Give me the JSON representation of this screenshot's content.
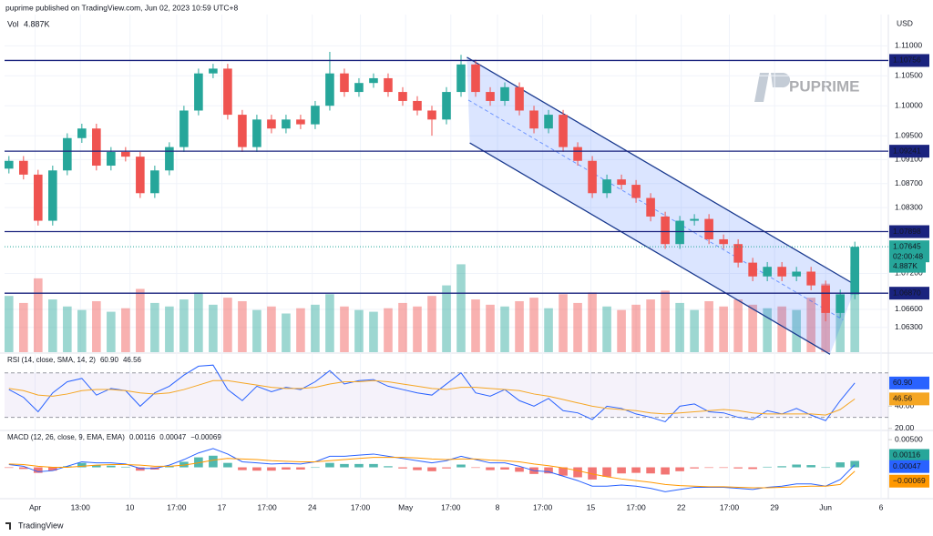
{
  "chart_data": {
    "type": "candlestick",
    "header": "puprime published on TradingView.com, Jun 02, 2023 10:59 UTC+8",
    "footer": "TradingView",
    "logo": "PUPRIME",
    "currency": "USD",
    "volume_label": "Vol",
    "volume_value": "4.887K",
    "up_color": "#26a69a",
    "down_color": "#ef5350",
    "xlim": [
      -0.3,
      60.3
    ],
    "xticks": [
      {
        "value": 1.8,
        "label": "Apr"
      },
      {
        "value": 4.9,
        "label": "13:00"
      },
      {
        "value": 8.3,
        "label": "10"
      },
      {
        "value": 11.5,
        "label": "17:00"
      },
      {
        "value": 14.6,
        "label": "17"
      },
      {
        "value": 17.7,
        "label": "17:00"
      },
      {
        "value": 20.8,
        "label": "24"
      },
      {
        "value": 24.1,
        "label": "17:00"
      },
      {
        "value": 27.2,
        "label": "May"
      },
      {
        "value": 30.3,
        "label": "17:00"
      },
      {
        "value": 33.5,
        "label": "8"
      },
      {
        "value": 36.6,
        "label": "17:00"
      },
      {
        "value": 39.9,
        "label": "15"
      },
      {
        "value": 43.0,
        "label": "17:00"
      },
      {
        "value": 46.1,
        "label": "22"
      },
      {
        "value": 49.4,
        "label": "17:00"
      },
      {
        "value": 52.5,
        "label": "29"
      },
      {
        "value": 56.0,
        "label": "Jun"
      },
      {
        "value": 59.8,
        "label": "6"
      }
    ],
    "ylim": [
      1.05885,
      1.11462
    ],
    "yticks": [
      {
        "value": 1.11,
        "label": "1.11000"
      },
      {
        "value": 1.105,
        "label": "1.10500"
      },
      {
        "value": 1.1,
        "label": "1.10000"
      },
      {
        "value": 1.095,
        "label": "1.09500"
      },
      {
        "value": 1.091,
        "label": "1.09100"
      },
      {
        "value": 1.087,
        "label": "1.08700"
      },
      {
        "value": 1.083,
        "label": "1.08300"
      },
      {
        "value": 1.072,
        "label": "1.07200"
      },
      {
        "value": 1.066,
        "label": "1.06600"
      },
      {
        "value": 1.063,
        "label": "1.06300"
      }
    ],
    "levels": [
      1.10756,
      1.09241,
      1.07898,
      {
        "value": 1.0687,
        "label": "1.06870"
      }
    ],
    "level_color": "#1a237e",
    "current": {
      "value": 1.07645,
      "countdown": "02:00:48"
    },
    "open": [
      1.0895,
      1.0908,
      1.0885,
      1.0808,
      1.0892,
      1.0946,
      1.0962,
      1.09,
      1.0923,
      1.0915,
      1.0854,
      1.0892,
      1.0931,
      1.0992,
      1.1054,
      1.1062,
      1.0985,
      1.0931,
      1.0977,
      1.0962,
      1.0977,
      1.0969,
      1.1,
      1.1054,
      1.1023,
      1.1038,
      1.1046,
      1.1023,
      1.1008,
      1.0992,
      1.0977,
      1.1023,
      1.1069,
      1.1023,
      1.1008,
      1.1031,
      1.0992,
      1.0962,
      1.0985,
      1.0931,
      1.0908,
      1.0854,
      1.0877,
      1.0868,
      1.0846,
      1.0815,
      1.0769,
      1.0808,
      1.0811,
      1.0777,
      1.0769,
      1.0738,
      1.0715,
      1.0731,
      1.0715,
      1.0723,
      1.07,
      1.0654,
      1.0685
    ],
    "high": [
      1.0916,
      1.0916,
      1.0893,
      1.09,
      1.0954,
      1.097,
      1.097,
      1.0931,
      1.0931,
      1.0923,
      1.09,
      1.0939,
      1.1,
      1.1062,
      1.107,
      1.107,
      1.0993,
      1.0985,
      1.0985,
      1.0985,
      1.0985,
      1.1008,
      1.109,
      1.1062,
      1.1046,
      1.1054,
      1.1054,
      1.1031,
      1.1016,
      1.1,
      1.1031,
      1.1085,
      1.1077,
      1.1031,
      1.1039,
      1.1039,
      1.1,
      1.0993,
      1.0993,
      1.0939,
      1.0916,
      1.0885,
      1.0885,
      1.0876,
      1.0854,
      1.0823,
      1.0816,
      1.0819,
      1.0819,
      1.0785,
      1.0777,
      1.0746,
      1.0739,
      1.0739,
      1.0731,
      1.0731,
      1.0708,
      1.0693,
      1.0773
    ],
    "low": [
      1.0887,
      1.0877,
      1.08,
      1.08,
      1.0884,
      1.0938,
      1.0892,
      1.0892,
      1.0907,
      1.0846,
      1.0846,
      1.0884,
      1.0923,
      1.0984,
      1.1046,
      1.0977,
      1.0923,
      1.0923,
      1.0954,
      1.0954,
      1.0961,
      1.0961,
      1.0992,
      1.1015,
      1.1015,
      1.103,
      1.1015,
      1.1,
      1.0984,
      1.095,
      1.0969,
      1.1015,
      1.1015,
      1.1,
      1.1,
      1.0984,
      1.0954,
      1.0954,
      1.0923,
      1.09,
      1.0846,
      1.0846,
      1.086,
      1.0838,
      1.0807,
      1.0761,
      1.0761,
      1.08,
      1.0769,
      1.0761,
      1.073,
      1.0707,
      1.0707,
      1.0707,
      1.0707,
      1.0692,
      1.064,
      1.0646,
      1.0677
    ],
    "close": [
      1.0908,
      1.0885,
      1.0808,
      1.0892,
      1.0946,
      1.0962,
      1.09,
      1.0923,
      1.0915,
      1.0854,
      1.0892,
      1.0931,
      1.0992,
      1.1054,
      1.1062,
      1.0985,
      1.0931,
      1.0977,
      1.0962,
      1.0977,
      1.0969,
      1.1,
      1.1054,
      1.1023,
      1.1038,
      1.1046,
      1.1023,
      1.1008,
      1.0992,
      1.0977,
      1.1023,
      1.1069,
      1.1023,
      1.1008,
      1.1031,
      1.0992,
      1.0962,
      1.0985,
      1.0931,
      1.0908,
      1.0854,
      1.0877,
      1.0868,
      1.0846,
      1.0815,
      1.0769,
      1.0808,
      1.0811,
      1.0777,
      1.0769,
      1.0738,
      1.0715,
      1.0731,
      1.0715,
      1.0723,
      1.07,
      1.0654,
      1.0685,
      1.07645
    ],
    "volume": [
      3200,
      2800,
      4200,
      3000,
      2600,
      2400,
      2900,
      2300,
      2500,
      3600,
      2800,
      2600,
      3000,
      3400,
      2700,
      3100,
      2900,
      2400,
      2600,
      2200,
      2500,
      2700,
      3300,
      2600,
      2400,
      2300,
      2500,
      2800,
      2600,
      3200,
      3800,
      5000,
      3000,
      2700,
      2600,
      2900,
      3100,
      2500,
      3300,
      2800,
      3400,
      2600,
      2400,
      2700,
      3000,
      3500,
      2800,
      2400,
      2900,
      2600,
      3000,
      2700,
      2500,
      2600,
      2400,
      3100,
      3900,
      3300,
      4887
    ],
    "vlim": [
      0,
      19000
    ],
    "channel": {
      "color": "#2962ff",
      "upper": [
        [
          31.4,
          1.1081
        ],
        [
          58.1,
          1.07
        ]
      ],
      "lower": [
        [
          31.6,
          1.0938
        ],
        [
          56.3,
          1.0585
        ]
      ]
    },
    "rsi": {
      "title": "RSI (14, close, SMA, 14, 2)",
      "ylim": [
        19,
        87
      ],
      "yticks": [
        {
          "value": 40,
          "label": "40.00"
        },
        {
          "value": 20,
          "label": "20.00"
        }
      ],
      "bands": [
        70,
        30
      ],
      "series": [
        {
          "color": "#2962ff",
          "last_label": "60.90",
          "values": [
            55,
            48,
            35,
            52,
            62,
            65,
            50,
            56,
            54,
            40,
            52,
            58,
            68,
            76,
            77,
            55,
            45,
            58,
            53,
            57,
            55,
            62,
            72,
            60,
            63,
            64,
            58,
            55,
            52,
            50,
            60,
            70,
            52,
            49,
            55,
            45,
            40,
            47,
            36,
            34,
            28,
            40,
            38,
            33,
            30,
            26,
            40,
            42,
            35,
            34,
            30,
            28,
            36,
            33,
            38,
            32,
            27,
            45,
            60.9
          ]
        },
        {
          "color": "#f5a623",
          "last_label": "46.56",
          "values": [
            56,
            54,
            50,
            49,
            51,
            54,
            55,
            55,
            54,
            52,
            51,
            52,
            55,
            59,
            63,
            63,
            61,
            59,
            57,
            56,
            56,
            57,
            60,
            62,
            62,
            63,
            62,
            60,
            58,
            56,
            55,
            57,
            57,
            56,
            55,
            54,
            51,
            49,
            46,
            43,
            40,
            38,
            37,
            36,
            34,
            33,
            34,
            35,
            36,
            37,
            36,
            34,
            33,
            33,
            33,
            33,
            32,
            37,
            46.56
          ]
        }
      ]
    },
    "macd": {
      "title": "MACD (12, 26, close, 9, EMA, EMA)",
      "ylim": [
        -0.0055,
        0.0065
      ],
      "yticks": [
        {
          "value": 0.005,
          "label": "0.00500"
        }
      ],
      "histogram": {
        "last_label": "0.00116",
        "up_color": "#26a69a",
        "down_color": "#ef5350",
        "values": [
          -0.0001,
          -0.0003,
          -0.001,
          -0.0006,
          0.0002,
          0.0008,
          0.0004,
          0.0003,
          0.0001,
          -0.0006,
          -0.0004,
          0.0002,
          0.001,
          0.0018,
          0.0021,
          0.0008,
          -0.0005,
          -0.0006,
          -0.0006,
          -0.0004,
          -0.0004,
          0,
          0.0008,
          0.0006,
          0.0006,
          0.0006,
          0.0002,
          -0.0002,
          -0.0005,
          -0.0007,
          -0.0002,
          0.0005,
          -0.0001,
          -0.0005,
          -0.0004,
          -0.0008,
          -0.0012,
          -0.0011,
          -0.0015,
          -0.0018,
          -0.0022,
          -0.0017,
          -0.0011,
          -0.001,
          -0.0011,
          -0.0013,
          -0.0007,
          -0.0002,
          -0.0001,
          -0.0001,
          -0.0002,
          -0.0003,
          0.0001,
          0.0002,
          0.0005,
          0.0004,
          0,
          0.0009,
          0.00116
        ]
      },
      "series": [
        {
          "color": "#2962ff",
          "last_label": "0.00047",
          "values": [
            0.0005,
            0.0002,
            -0.0008,
            -0.0006,
            0.0002,
            0.001,
            0.0008,
            0.0008,
            0.0006,
            -0.0002,
            -0.0002,
            0.0004,
            0.0014,
            0.0026,
            0.0034,
            0.0024,
            0.001,
            0.0008,
            0.0006,
            0.0007,
            0.0006,
            0.001,
            0.002,
            0.002,
            0.0022,
            0.0024,
            0.002,
            0.0016,
            0.0012,
            0.0008,
            0.0012,
            0.002,
            0.0014,
            0.0008,
            0.0008,
            0.0002,
            -0.0006,
            -0.0008,
            -0.0016,
            -0.0024,
            -0.0034,
            -0.0034,
            -0.0032,
            -0.0034,
            -0.0038,
            -0.0044,
            -0.004,
            -0.0036,
            -0.0036,
            -0.0036,
            -0.0038,
            -0.004,
            -0.0036,
            -0.0034,
            -0.003,
            -0.003,
            -0.0034,
            -0.0022,
            0.00047
          ]
        },
        {
          "color": "#ff9800",
          "last_label": "−0.00069",
          "values": [
            0.0006,
            0.0005,
            0.0002,
            0,
            0,
            0.0002,
            0.0004,
            0.0005,
            0.0005,
            0.0004,
            0.0002,
            0.0002,
            0.0004,
            0.0008,
            0.0013,
            0.0016,
            0.0015,
            0.0014,
            0.0012,
            0.0011,
            0.001,
            0.001,
            0.0012,
            0.0014,
            0.0016,
            0.0018,
            0.0018,
            0.0018,
            0.0017,
            0.0015,
            0.0014,
            0.0015,
            0.0015,
            0.0013,
            0.0012,
            0.001,
            0.0006,
            0.0003,
            -0.0001,
            -0.0006,
            -0.0012,
            -0.0017,
            -0.0021,
            -0.0024,
            -0.0027,
            -0.0031,
            -0.0033,
            -0.0034,
            -0.0035,
            -0.0035,
            -0.0036,
            -0.0037,
            -0.0037,
            -0.0036,
            -0.0035,
            -0.0034,
            -0.0034,
            -0.0031,
            -0.00069
          ]
        }
      ]
    }
  }
}
